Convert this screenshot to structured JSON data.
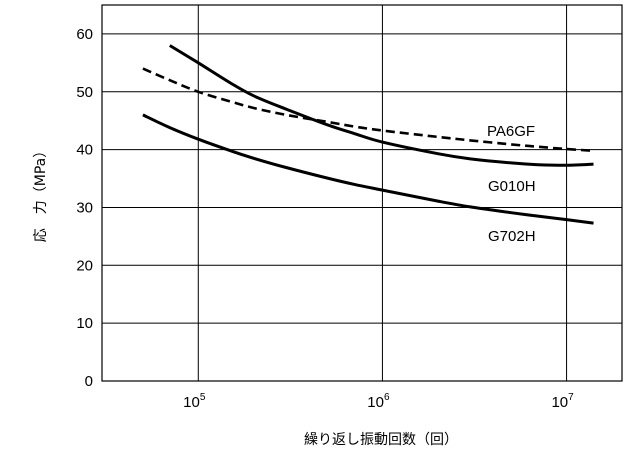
{
  "chart_data": {
    "type": "line",
    "xlabel": "繰り返し振動回数（回）",
    "ylabel": "応　力（MPa）",
    "x_scale": "log",
    "xlim": [
      30000,
      20000000
    ],
    "ylim": [
      0,
      65
    ],
    "grid": true,
    "y_ticks": [
      0,
      10,
      20,
      30,
      40,
      50,
      60
    ],
    "x_ticks": [
      {
        "value": 100000,
        "base": "10",
        "exp": "5"
      },
      {
        "value": 1000000,
        "base": "10",
        "exp": "6"
      },
      {
        "value": 10000000,
        "base": "10",
        "exp": "7"
      }
    ],
    "series": [
      {
        "name": "PA6GF",
        "style": "dashed",
        "color": "#000000",
        "x": [
          50000,
          70000,
          100000,
          150000,
          200000,
          300000,
          500000,
          700000,
          1000000,
          2000000,
          3000000,
          5000000,
          7000000,
          10000000,
          14000000
        ],
        "y": [
          54,
          52,
          50,
          48.3,
          47.2,
          46,
          44.8,
          44,
          43.3,
          42.2,
          41.6,
          40.9,
          40.5,
          40.1,
          39.8
        ]
      },
      {
        "name": "G010H",
        "style": "solid",
        "color": "#000000",
        "x": [
          70000,
          100000,
          150000,
          200000,
          300000,
          500000,
          700000,
          1000000,
          2000000,
          3000000,
          5000000,
          7000000,
          10000000,
          14000000
        ],
        "y": [
          58,
          55,
          51.5,
          49.3,
          47,
          44.3,
          42.8,
          41.3,
          39.3,
          38.4,
          37.7,
          37.4,
          37.3,
          37.5
        ]
      },
      {
        "name": "G702H",
        "style": "solid",
        "color": "#000000",
        "x": [
          50000,
          70000,
          100000,
          150000,
          200000,
          300000,
          500000,
          700000,
          1000000,
          2000000,
          3000000,
          5000000,
          7000000,
          10000000,
          14000000
        ],
        "y": [
          46,
          43.8,
          41.8,
          39.8,
          38.5,
          36.9,
          35.1,
          34,
          33,
          31.1,
          30.1,
          29.1,
          28.5,
          27.9,
          27.3
        ]
      }
    ],
    "labels": [
      {
        "text": "PA6GF",
        "series": "PA6GF"
      },
      {
        "text": "G010H",
        "series": "G010H"
      },
      {
        "text": "G702H",
        "series": "G702H"
      }
    ]
  }
}
